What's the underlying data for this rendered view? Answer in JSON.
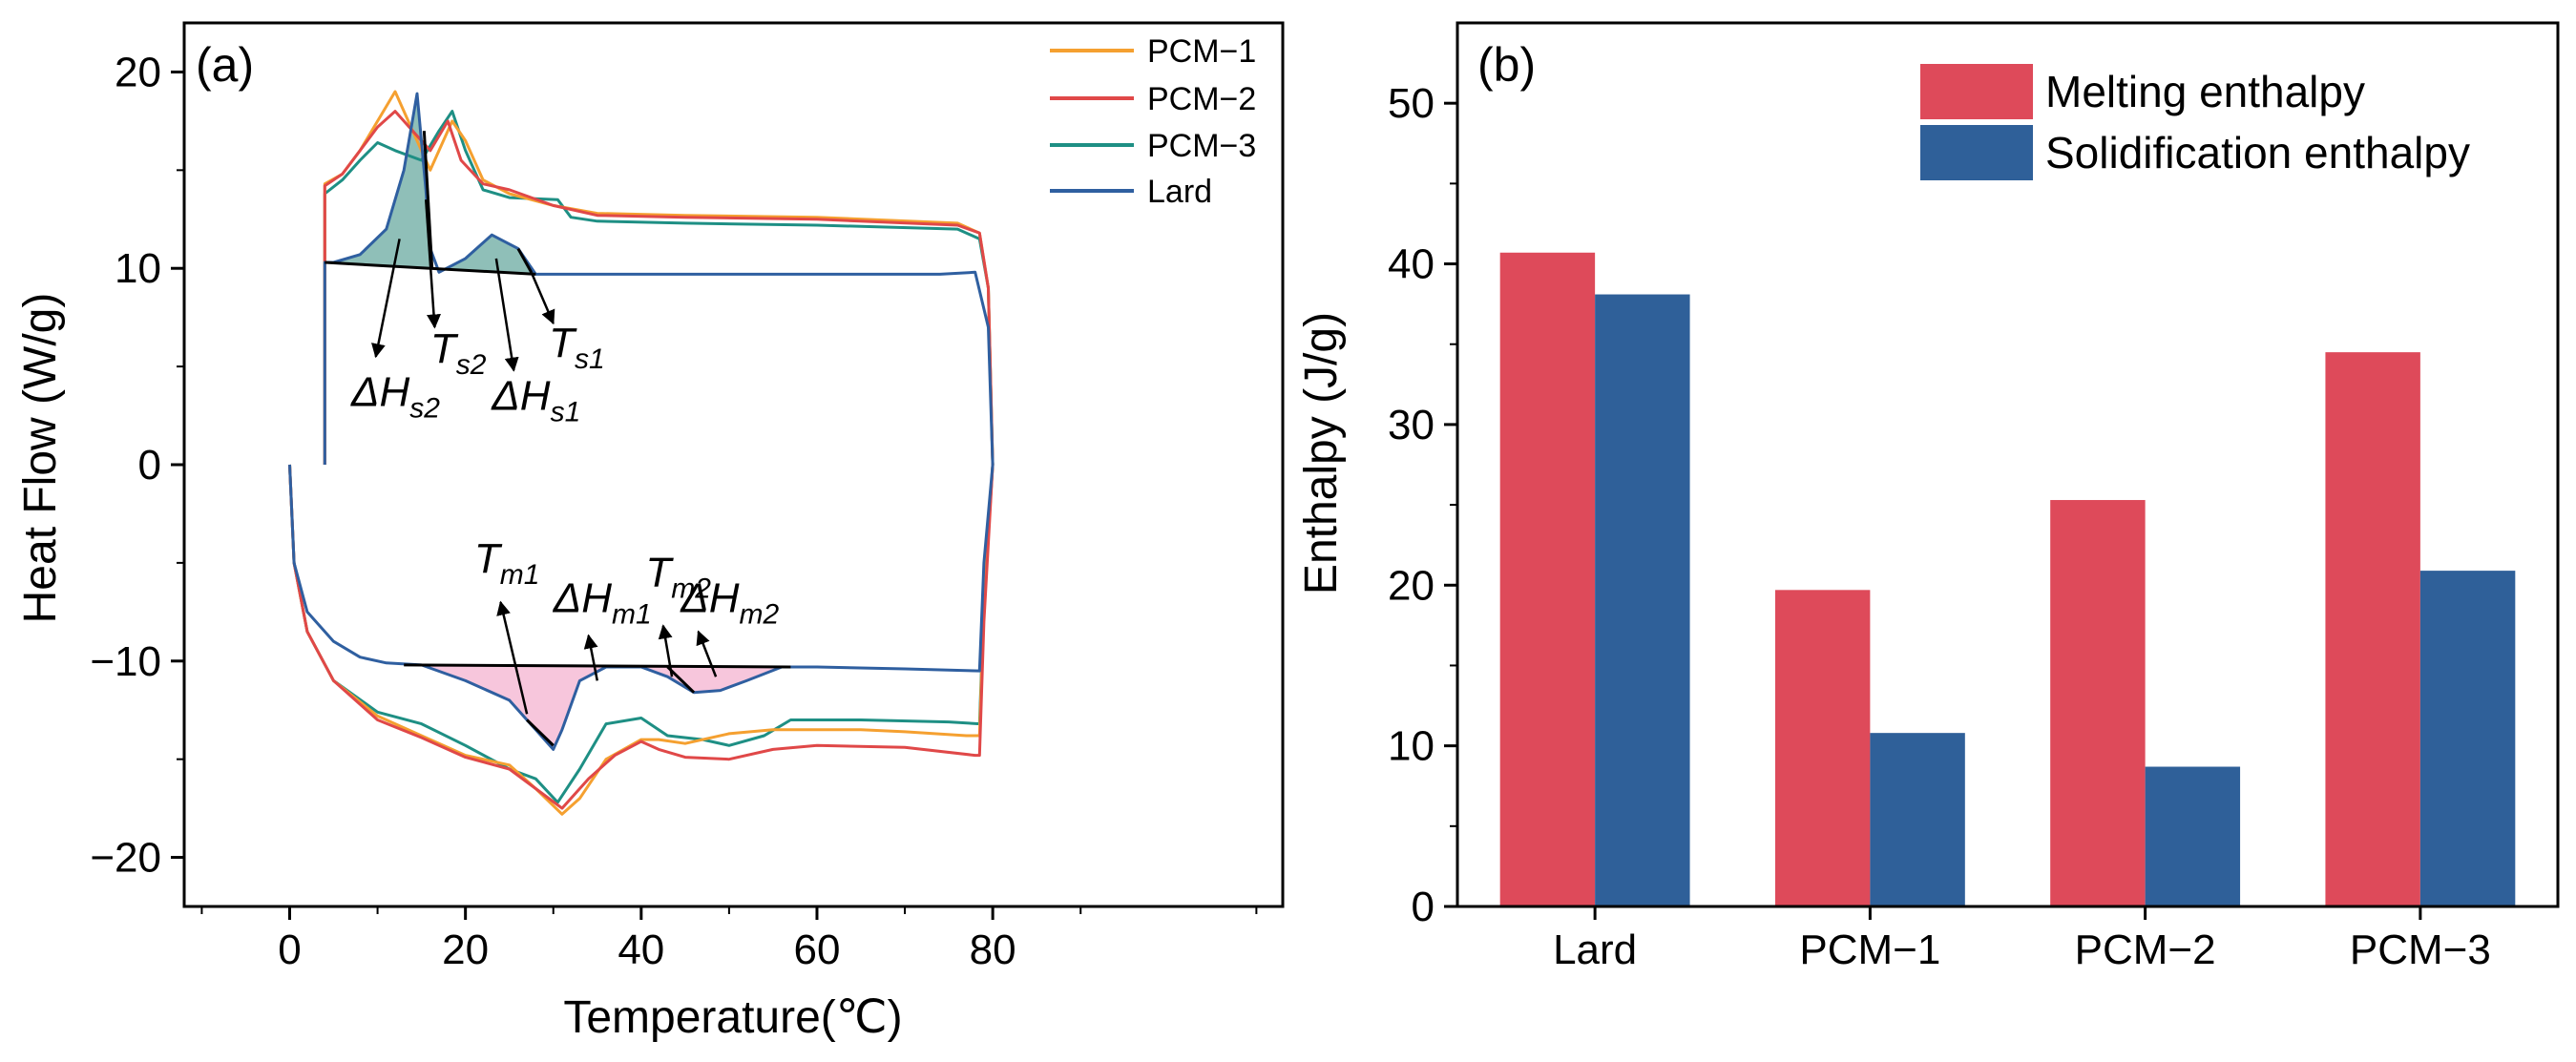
{
  "panel_a": {
    "panel_label": "(a)",
    "xlabel": "Temperature(℃)",
    "ylabel": "Heat Flow (W/g)",
    "legend": [
      "PCM−1",
      "PCM−2",
      "PCM−3",
      "Lard"
    ],
    "annotations": {
      "dHs2": {
        "main": "ΔH",
        "sub": "s2"
      },
      "Ts2": {
        "main": "T",
        "sub": "s2"
      },
      "dHs1": {
        "main": "ΔH",
        "sub": "s1"
      },
      "Ts1": {
        "main": "T",
        "sub": "s1"
      },
      "Tm1": {
        "main": "T",
        "sub": "m1"
      },
      "dHm1": {
        "main": "ΔH",
        "sub": "m1"
      },
      "Tm2": {
        "main": "T",
        "sub": "m2"
      },
      "dHm2": {
        "main": "ΔH",
        "sub": "m2"
      }
    }
  },
  "panel_b": {
    "panel_label": "(b)",
    "xlabel": "",
    "ylabel": "Enthalpy (J/g)",
    "legend": [
      "Melting enthalpy",
      "Solidification enthalpy"
    ]
  },
  "colors": {
    "PCM-1": "#f5a030",
    "PCM-2": "#e04848",
    "PCM-3": "#1e8f84",
    "Lard": "#2f5fa0",
    "melting": "#de4a5a",
    "solidification": "#2f6099",
    "solid_fill": "#8fbfb8",
    "melt_fill": "#f7c6dc"
  },
  "chart_data": [
    {
      "type": "line",
      "title": "",
      "xlabel": "Temperature(℃)",
      "ylabel": "Heat Flow (W/g)",
      "xlim": [
        -12,
        113
      ],
      "ylim": [
        -22.5,
        22.5
      ],
      "xticks": [
        0,
        20,
        40,
        60,
        80
      ],
      "yticks": [
        -20,
        -10,
        0,
        10,
        20
      ],
      "legend_position": "top-right",
      "series": [
        {
          "name": "PCM−1",
          "cooling": [
            [
              80,
              0
            ],
            [
              79.5,
              9
            ],
            [
              78.5,
              11.8
            ],
            [
              76,
              12.3
            ],
            [
              60,
              12.6
            ],
            [
              45,
              12.7
            ],
            [
              35,
              12.8
            ],
            [
              30,
              13.2
            ],
            [
              25,
              13.8
            ],
            [
              22,
              14.5
            ],
            [
              20,
              16.5
            ],
            [
              18.5,
              17.5
            ],
            [
              16,
              15
            ],
            [
              14,
              17
            ],
            [
              12,
              19
            ],
            [
              10,
              17.5
            ],
            [
              8,
              16
            ],
            [
              6,
              14.8
            ],
            [
              4,
              14.3
            ],
            [
              4,
              0
            ]
          ],
          "heating": [
            [
              0,
              0
            ],
            [
              0.5,
              -5
            ],
            [
              2,
              -8.5
            ],
            [
              5,
              -11
            ],
            [
              10,
              -12.8
            ],
            [
              15,
              -13.8
            ],
            [
              20,
              -14.8
            ],
            [
              25,
              -15.3
            ],
            [
              28,
              -16.5
            ],
            [
              31,
              -17.8
            ],
            [
              33,
              -17
            ],
            [
              36,
              -15
            ],
            [
              40,
              -14
            ],
            [
              42,
              -14
            ],
            [
              45,
              -14.2
            ],
            [
              50,
              -13.7
            ],
            [
              55,
              -13.5
            ],
            [
              65,
              -13.5
            ],
            [
              70,
              -13.6
            ],
            [
              77,
              -13.8
            ],
            [
              78.5,
              -13.8
            ],
            [
              79,
              -7
            ],
            [
              80,
              0
            ]
          ]
        },
        {
          "name": "PCM−2",
          "cooling": [
            [
              80,
              0
            ],
            [
              79.5,
              9
            ],
            [
              78.5,
              11.8
            ],
            [
              76,
              12.2
            ],
            [
              60,
              12.5
            ],
            [
              45,
              12.6
            ],
            [
              35,
              12.7
            ],
            [
              30,
              13.2
            ],
            [
              25,
              14
            ],
            [
              22,
              14.3
            ],
            [
              19.5,
              15.5
            ],
            [
              18,
              17.5
            ],
            [
              16,
              16
            ],
            [
              14,
              17
            ],
            [
              12,
              18
            ],
            [
              10,
              17.2
            ],
            [
              8,
              16
            ],
            [
              6,
              14.8
            ],
            [
              4,
              14.2
            ],
            [
              4,
              0
            ]
          ],
          "heating": [
            [
              0,
              0
            ],
            [
              0.5,
              -5
            ],
            [
              2,
              -8.5
            ],
            [
              5,
              -11
            ],
            [
              10,
              -13
            ],
            [
              15,
              -13.9
            ],
            [
              20,
              -14.9
            ],
            [
              25,
              -15.5
            ],
            [
              28,
              -16.5
            ],
            [
              31,
              -17.5
            ],
            [
              34,
              -16
            ],
            [
              37,
              -14.8
            ],
            [
              40,
              -14.1
            ],
            [
              42,
              -14.5
            ],
            [
              45,
              -14.9
            ],
            [
              50,
              -15
            ],
            [
              55,
              -14.5
            ],
            [
              60,
              -14.3
            ],
            [
              70,
              -14.4
            ],
            [
              78,
              -14.8
            ],
            [
              78.5,
              -14.8
            ],
            [
              79,
              -8
            ],
            [
              80,
              0
            ]
          ]
        },
        {
          "name": "PCM−3",
          "cooling": [
            [
              80,
              0
            ],
            [
              79.5,
              9
            ],
            [
              78.5,
              11.5
            ],
            [
              76,
              12
            ],
            [
              60,
              12.2
            ],
            [
              45,
              12.3
            ],
            [
              35,
              12.4
            ],
            [
              32,
              12.6
            ],
            [
              30.5,
              13.5
            ],
            [
              25,
              13.6
            ],
            [
              22,
              14
            ],
            [
              20,
              16
            ],
            [
              18.5,
              18
            ],
            [
              17,
              17
            ],
            [
              15,
              15.5
            ],
            [
              12,
              16
            ],
            [
              10,
              16.4
            ],
            [
              8,
              15.5
            ],
            [
              6,
              14.5
            ],
            [
              4,
              13.8
            ],
            [
              4,
              0
            ]
          ],
          "heating": [
            [
              0,
              0
            ],
            [
              0.5,
              -5
            ],
            [
              2,
              -8.5
            ],
            [
              5,
              -11
            ],
            [
              10,
              -12.6
            ],
            [
              15,
              -13.2
            ],
            [
              20,
              -14.3
            ],
            [
              25,
              -15.5
            ],
            [
              28,
              -16
            ],
            [
              30.5,
              -17.2
            ],
            [
              33,
              -15.5
            ],
            [
              36,
              -13.2
            ],
            [
              40,
              -12.9
            ],
            [
              43,
              -13.8
            ],
            [
              47,
              -14
            ],
            [
              50,
              -14.3
            ],
            [
              54,
              -13.8
            ],
            [
              57,
              -13
            ],
            [
              65,
              -13
            ],
            [
              75,
              -13.1
            ],
            [
              78.5,
              -13.2
            ],
            [
              79,
              -7
            ],
            [
              80,
              0
            ]
          ]
        },
        {
          "name": "Lard",
          "cooling": [
            [
              80,
              0
            ],
            [
              79.5,
              7
            ],
            [
              78,
              9.8
            ],
            [
              74,
              9.7
            ],
            [
              60,
              9.7
            ],
            [
              40,
              9.7
            ],
            [
              28,
              9.7
            ],
            [
              26,
              11
            ],
            [
              23,
              11.7
            ],
            [
              20,
              10.5
            ],
            [
              17,
              9.8
            ],
            [
              16,
              11
            ],
            [
              15.5,
              14
            ],
            [
              14.5,
              18.9
            ],
            [
              13,
              15
            ],
            [
              11,
              12
            ],
            [
              8,
              10.7
            ],
            [
              5,
              10.3
            ],
            [
              4,
              10.3
            ],
            [
              4,
              0
            ]
          ],
          "heating": [
            [
              0,
              0
            ],
            [
              0.5,
              -5
            ],
            [
              2,
              -7.5
            ],
            [
              5,
              -9
            ],
            [
              8,
              -9.8
            ],
            [
              11,
              -10.1
            ],
            [
              15,
              -10.2
            ],
            [
              20,
              -11
            ],
            [
              25,
              -12
            ],
            [
              28,
              -13.5
            ],
            [
              30,
              -14.5
            ],
            [
              31,
              -13.5
            ],
            [
              33,
              -11
            ],
            [
              36,
              -10.3
            ],
            [
              40,
              -10.3
            ],
            [
              43,
              -10.8
            ],
            [
              46,
              -11.6
            ],
            [
              49,
              -11.5
            ],
            [
              52,
              -11
            ],
            [
              56,
              -10.3
            ],
            [
              60,
              -10.3
            ],
            [
              70,
              -10.4
            ],
            [
              78.5,
              -10.5
            ],
            [
              79,
              -5
            ],
            [
              80,
              0
            ]
          ]
        }
      ]
    },
    {
      "type": "bar",
      "title": "",
      "xlabel": "",
      "ylabel": "Enthalpy (J/g)",
      "categories": [
        "Lard",
        "PCM−1",
        "PCM−2",
        "PCM−3"
      ],
      "ylim": [
        0,
        55
      ],
      "yticks": [
        0,
        10,
        20,
        30,
        40,
        50
      ],
      "legend_position": "top-right",
      "series": [
        {
          "name": "Melting enthalpy",
          "values": [
            40.7,
            19.7,
            25.3,
            34.5
          ]
        },
        {
          "name": "Solidification enthalpy",
          "values": [
            38.1,
            10.8,
            8.7,
            20.9
          ]
        }
      ]
    }
  ]
}
